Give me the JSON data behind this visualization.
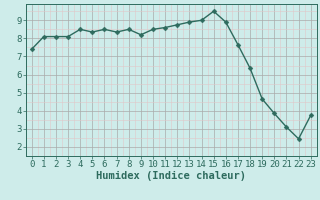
{
  "x": [
    0,
    1,
    2,
    3,
    4,
    5,
    6,
    7,
    8,
    9,
    10,
    11,
    12,
    13,
    14,
    15,
    16,
    17,
    18,
    19,
    20,
    21,
    22,
    23
  ],
  "y": [
    7.4,
    8.1,
    8.1,
    8.1,
    8.5,
    8.35,
    8.5,
    8.35,
    8.5,
    8.2,
    8.5,
    8.6,
    8.75,
    8.9,
    9.0,
    9.5,
    8.9,
    7.65,
    6.35,
    4.65,
    3.85,
    3.1,
    2.45,
    3.75
  ],
  "line_color": "#2e6b5e",
  "marker_color": "#2e6b5e",
  "bg_color": "#ceecea",
  "grid_color_major": "#aaaaaa",
  "grid_color_minor": "#e0c8c8",
  "xlabel": "Humidex (Indice chaleur)",
  "ylim": [
    1.5,
    9.9
  ],
  "xlim": [
    -0.5,
    23.5
  ],
  "yticks": [
    2,
    3,
    4,
    5,
    6,
    7,
    8,
    9
  ],
  "xticks": [
    0,
    1,
    2,
    3,
    4,
    5,
    6,
    7,
    8,
    9,
    10,
    11,
    12,
    13,
    14,
    15,
    16,
    17,
    18,
    19,
    20,
    21,
    22,
    23
  ],
  "font_color": "#2e6b5e",
  "font_size": 6.5,
  "xlabel_fontsize": 7.5,
  "marker_size": 2.5,
  "line_width": 1.0
}
